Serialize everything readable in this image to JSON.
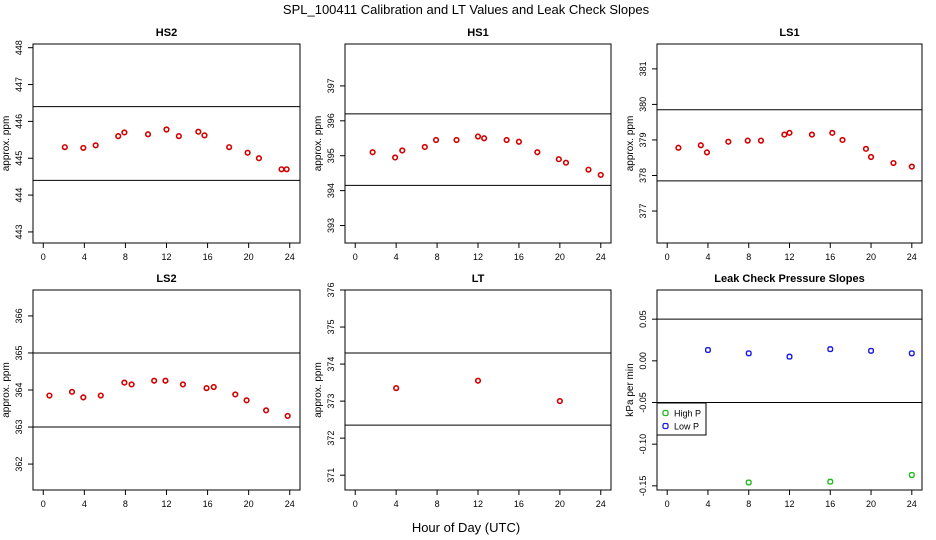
{
  "figure_title": "SPL_100411  Calibration and LT Values and Leak Check Slopes",
  "figure_xlabel": "Hour of Day (UTC)",
  "colors": {
    "points": "#d40000",
    "high_p": "#22bb22",
    "low_p": "#1a1ae6",
    "axis": "#000000"
  },
  "chart_data": [
    {
      "type": "scatter",
      "title": "HS2",
      "ylabel": "approx. ppm",
      "xlim": [
        -1,
        25
      ],
      "ylim": [
        442.7,
        448.1
      ],
      "xticks": [
        0,
        4,
        8,
        12,
        16,
        20,
        24
      ],
      "yticks": [
        443,
        444,
        445,
        446,
        447,
        448
      ],
      "hlines": [
        444.4,
        446.4
      ],
      "series": [
        {
          "color": "#d40000",
          "x": [
            2.1,
            3.9,
            5.1,
            7.3,
            7.9,
            10.2,
            12.0,
            13.2,
            15.1,
            15.7,
            18.1,
            19.9,
            21.0,
            23.2,
            23.7
          ],
          "y": [
            445.3,
            445.28,
            445.35,
            445.6,
            445.7,
            445.65,
            445.78,
            445.6,
            445.72,
            445.62,
            445.3,
            445.15,
            445.0,
            444.7,
            444.7
          ]
        }
      ]
    },
    {
      "type": "scatter",
      "title": "HS1",
      "ylabel": "approx. ppm",
      "xlim": [
        -1,
        25
      ],
      "ylim": [
        392.5,
        398.2
      ],
      "xticks": [
        0,
        4,
        8,
        12,
        16,
        20,
        24
      ],
      "yticks": [
        393,
        394,
        395,
        396,
        397
      ],
      "hlines": [
        394.15,
        396.2
      ],
      "series": [
        {
          "color": "#d40000",
          "x": [
            1.7,
            3.9,
            4.6,
            6.8,
            7.9,
            9.9,
            12.0,
            12.6,
            14.8,
            16.0,
            17.8,
            19.9,
            20.6,
            22.8,
            24.0
          ],
          "y": [
            395.1,
            394.95,
            395.15,
            395.25,
            395.45,
            395.45,
            395.55,
            395.5,
            395.45,
            395.4,
            395.1,
            394.9,
            394.8,
            394.6,
            394.45
          ]
        }
      ]
    },
    {
      "type": "scatter",
      "title": "LS1",
      "ylabel": "approx. ppm",
      "xlim": [
        -1,
        25
      ],
      "ylim": [
        376.1,
        381.7
      ],
      "xticks": [
        0,
        4,
        8,
        12,
        16,
        20,
        24
      ],
      "yticks": [
        377,
        378,
        379,
        380,
        381
      ],
      "hlines": [
        377.85,
        379.85
      ],
      "series": [
        {
          "color": "#d40000",
          "x": [
            1.1,
            3.3,
            3.9,
            6.0,
            7.9,
            9.2,
            11.5,
            12.0,
            14.2,
            16.2,
            17.2,
            19.5,
            20.0,
            22.2,
            24.0
          ],
          "y": [
            378.78,
            378.85,
            378.65,
            378.95,
            378.98,
            378.98,
            379.15,
            379.2,
            379.15,
            379.2,
            379.0,
            378.75,
            378.52,
            378.35,
            378.25
          ]
        }
      ]
    },
    {
      "type": "scatter",
      "title": "LS2",
      "ylabel": "approx. ppm",
      "xlim": [
        -1,
        25
      ],
      "ylim": [
        361.3,
        366.7
      ],
      "xticks": [
        0,
        4,
        8,
        12,
        16,
        20,
        24
      ],
      "yticks": [
        362,
        363,
        364,
        365,
        366
      ],
      "hlines": [
        363.0,
        365.0
      ],
      "series": [
        {
          "color": "#d40000",
          "x": [
            0.6,
            2.8,
            3.9,
            5.6,
            7.9,
            8.6,
            10.8,
            11.9,
            13.6,
            15.9,
            16.6,
            18.7,
            19.8,
            21.7,
            23.8
          ],
          "y": [
            363.85,
            363.95,
            363.8,
            363.85,
            364.2,
            364.15,
            364.25,
            364.25,
            364.15,
            364.05,
            364.08,
            363.88,
            363.72,
            363.45,
            363.3
          ]
        }
      ]
    },
    {
      "type": "scatter",
      "title": "LT",
      "ylabel": "approx. ppm",
      "xlim": [
        -1,
        25
      ],
      "ylim": [
        370.6,
        376.0
      ],
      "xticks": [
        0,
        4,
        8,
        12,
        16,
        20,
        24
      ],
      "yticks": [
        371,
        372,
        373,
        374,
        375,
        376
      ],
      "hlines": [
        372.35,
        374.3
      ],
      "series": [
        {
          "color": "#d40000",
          "x": [
            4.0,
            12.0,
            20.0
          ],
          "y": [
            373.35,
            373.55,
            373.0
          ]
        }
      ]
    },
    {
      "type": "scatter",
      "title": "Leak Check Pressure Slopes",
      "ylabel": "kPa per min",
      "xlim": [
        -1,
        25
      ],
      "ylim": [
        -0.155,
        0.085
      ],
      "xticks": [
        0,
        4,
        8,
        12,
        16,
        20,
        24
      ],
      "yticks": [
        -0.15,
        -0.1,
        -0.05,
        0.0,
        0.05
      ],
      "ytick_labels": [
        "-0.15",
        "-0.10",
        "-0.05",
        "0.00",
        "0.05"
      ],
      "hlines": [
        0.05,
        -0.05
      ],
      "legend": {
        "position": "left",
        "entries": [
          "High P",
          "Low P"
        ]
      },
      "series": [
        {
          "name": "High P",
          "color": "#22bb22",
          "x": [
            8,
            16,
            24
          ],
          "y": [
            -0.146,
            -0.145,
            -0.137
          ]
        },
        {
          "name": "Low P",
          "color": "#1a1ae6",
          "x": [
            4,
            8,
            12,
            16,
            20,
            24
          ],
          "y": [
            0.013,
            0.009,
            0.005,
            0.014,
            0.012,
            0.009
          ]
        }
      ]
    }
  ]
}
